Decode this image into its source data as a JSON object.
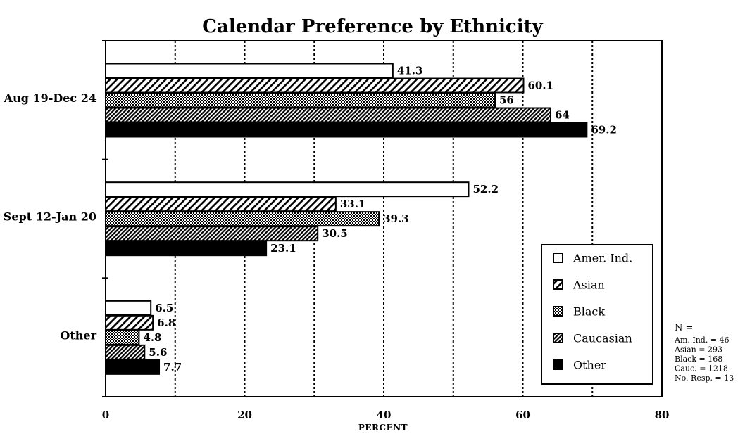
{
  "chart_data": {
    "type": "bar",
    "orientation": "horizontal",
    "title": "Calendar Preference by Ethnicity",
    "xlabel": "PERCENT",
    "ylabel": "",
    "xlim": [
      0,
      80
    ],
    "x_ticks": [
      "0",
      "20",
      "40",
      "60",
      "80"
    ],
    "grid": "vertical-dashed",
    "categories": [
      "Aug 19-Dec 24",
      "Sept 12-Jan 20",
      "Other"
    ],
    "series": [
      {
        "name": "Amer. Ind.",
        "values": [
          41.3,
          52.2,
          6.5
        ],
        "labels": [
          "41.3",
          "52.2",
          "6.5"
        ],
        "fill": "white"
      },
      {
        "name": "Asian",
        "values": [
          60.1,
          33.1,
          6.8
        ],
        "labels": [
          "60.1",
          "33.1",
          "6.8"
        ],
        "fill": "diagonal-wide"
      },
      {
        "name": "Black",
        "values": [
          56,
          39.3,
          4.8
        ],
        "labels": [
          "56",
          "39.3",
          "4.8"
        ],
        "fill": "crosshatch"
      },
      {
        "name": "Caucasian",
        "values": [
          64,
          30.5,
          5.6
        ],
        "labels": [
          "64",
          "30.5",
          "5.6"
        ],
        "fill": "diagonal-dense"
      },
      {
        "name": "Other",
        "values": [
          69.2,
          23.1,
          7.7
        ],
        "labels": [
          "69.2",
          "23.1",
          "7.7"
        ],
        "fill": "black"
      }
    ],
    "legend_position": "bottom-right",
    "annotation": {
      "heading": "N =",
      "lines": [
        "Am. Ind. = 46",
        "Asian = 293",
        "Black = 168",
        "Cauc. = 1218",
        "No. Resp. = 13"
      ]
    }
  }
}
